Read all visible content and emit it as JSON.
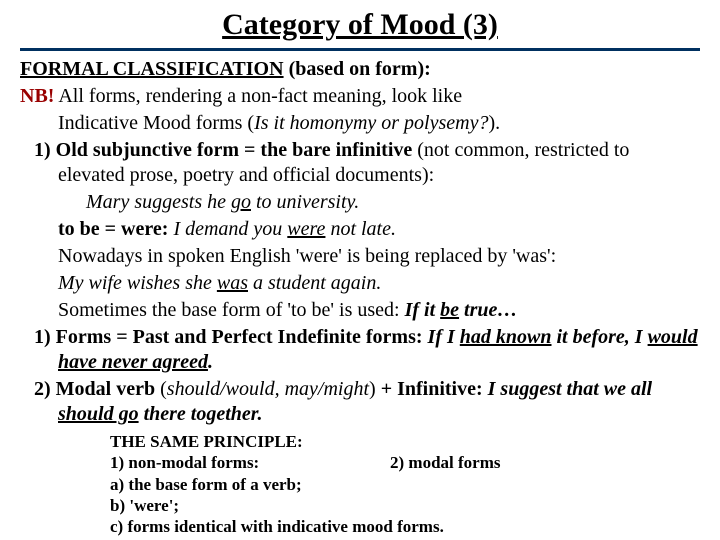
{
  "title": "Category of Mood (3)",
  "line_formal": "FORMAL CLASSIFICATION",
  "line_formal_rest": " (based on form):",
  "nb_label": "NB!",
  "nb_text1": " All forms, rendering a non-fact meaning, look like",
  "nb_text2": "Indicative Mood forms (",
  "nb_italic": "Is it homonymy or polysemy?",
  "nb_text3": ").",
  "p1_num": "1)  ",
  "p1_a": "Old subjunctive form = the bare infinitive",
  "p1_b": " (not common, restricted to elevated prose, poetry and official documents):",
  "ex1_a": "Mary suggests he ",
  "ex1_u": "go",
  "ex1_b": " to university.",
  "tobe_a": "to be = were: ",
  "tobe_i1": "I demand you ",
  "tobe_u": "were",
  "tobe_i2": " not late.",
  "now_a": "Nowadays in spoken English 'were' is being replaced by 'was':",
  "wife_a": "My wife wishes she ",
  "wife_u": "was",
  "wife_b": " a student again.",
  "some_a": "Sometimes the base form of 'to be' is used: ",
  "some_i1": "If it ",
  "some_u": "be",
  "some_i2": " true…",
  "p2_num": "1)  ",
  "p2_a": "Forms = Past and Perfect Indefinite forms: ",
  "p2_i1": "If I ",
  "p2_u1": "had known",
  "p2_i2": " it before, I ",
  "p2_u2": "would have never agreed",
  "p2_i3": ".",
  "p3_num": "2)  ",
  "p3_a": "Modal verb",
  "p3_b": " (",
  "p3_c": "should/would, may/might",
  "p3_d": ") ",
  "p3_e": "+ Infinitive:",
  "p3_i1": " I suggest that we all ",
  "p3_u": "should go",
  "p3_i2": " there together.",
  "pr_title": "THE SAME PRINCIPLE:",
  "pr_1": "1) non-modal forms:",
  "pr_2": "2) modal forms",
  "pr_a": "a) the base form of a verb;",
  "pr_b": "b) 'were';",
  "pr_c": "c) forms identical with indicative mood forms."
}
